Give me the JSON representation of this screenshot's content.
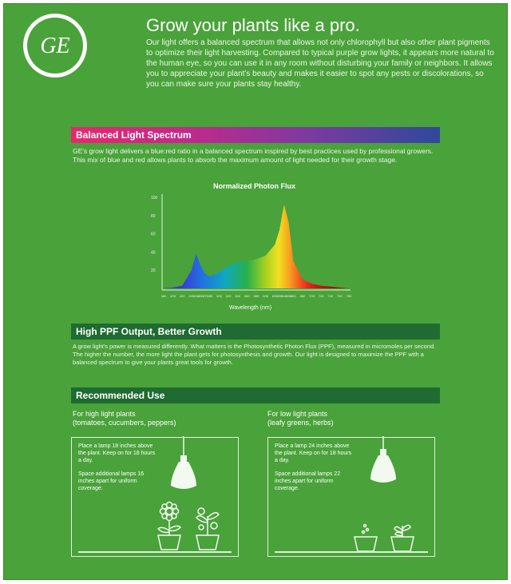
{
  "brand": {
    "logo_text": "GE"
  },
  "header": {
    "headline": "Grow your plants like a pro.",
    "intro": "Our light offers a balanced spectrum that allows not only chlorophyll but also other plant pigments to optimize their light harvesting. Compared to typical purple grow lights, it appears more natural to the human eye, so you can use it in any room without disturbing your family or neighbors. It allows you to appreciate your plant's beauty and makes it easier to spot any pests or discolorations, so you can make sure your plants stay healthy."
  },
  "spectrum": {
    "heading": "Balanced Light Spectrum",
    "text": "GE's grow light delivers a blue:red ratio in a balanced spectrum inspired by best practices used by professional growers. This mix of blue and red allows plants to absorb the maximum amount of light needed for their growth stage."
  },
  "chart_data": {
    "type": "area",
    "title": "Normalized Photon Flux",
    "xlabel": "Wavelength (nm)",
    "ylabel": "",
    "x": [
      380,
      400,
      420,
      440,
      450,
      460,
      470,
      480,
      500,
      520,
      540,
      560,
      580,
      600,
      620,
      630,
      640,
      650,
      660,
      680,
      700,
      720,
      740,
      760,
      780
    ],
    "values": [
      0,
      1,
      3,
      20,
      38,
      25,
      16,
      13,
      18,
      25,
      29,
      30,
      32,
      36,
      48,
      64,
      92,
      72,
      30,
      10,
      5,
      3,
      2,
      1,
      0
    ],
    "ylim": [
      0,
      100
    ],
    "xlim": [
      380,
      780
    ],
    "yticks": [
      "100",
      "80",
      "60",
      "40",
      "20"
    ],
    "grid": false
  },
  "ppf": {
    "heading": "High PPF Output, Better Growth",
    "text": "A grow light's power is measured differently. What matters is the Photosynthetic Photon Flux (PPF), measured in micromoles per second. The higher the number, the more light the plant gets for photosynthesis and growth. Our light is designed to maximize the PPF with a balanced spectrum to give your plants great tools for growth."
  },
  "recommended": {
    "heading": "Recommended Use",
    "high": {
      "title": "For high light plants",
      "subtitle": "(tomatoes, cucumbers, peppers)",
      "step1": "Place a lamp 18 inches above the plant. Keep on for 18 hours a day.",
      "step2": "Space additional lamps 16 inches apart for uniform coverage."
    },
    "low": {
      "title": "For low light plants",
      "subtitle": "(leafy greens, herbs)",
      "step1": "Place a lamp 24 inches above the plant. Keep on for 18 hours a day.",
      "step2": "Space additional lamps 22 inches apart for uniform coverage."
    }
  },
  "colors": {
    "panel": "#4aa23a",
    "bar_dark": "#1f6b32",
    "spectrum_start": "#e6286e",
    "spectrum_end": "#2e4a9a"
  }
}
